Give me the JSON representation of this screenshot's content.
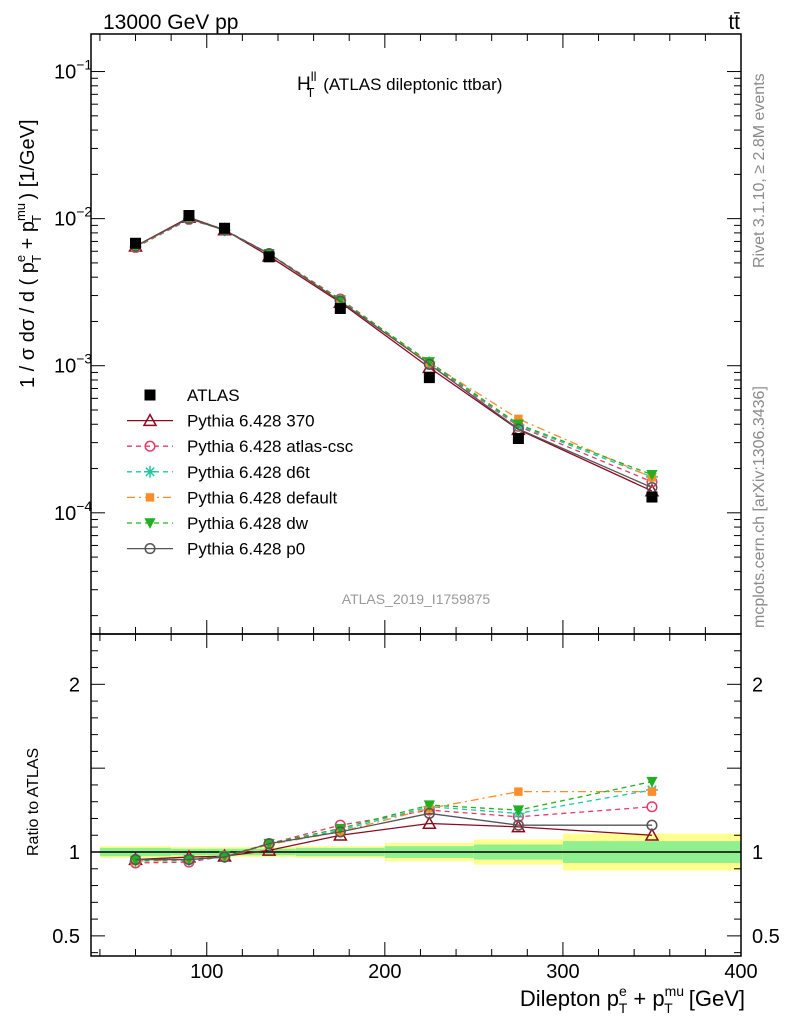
{
  "header": {
    "energy_label": "13000 GeV pp",
    "process_label": "tt̄"
  },
  "side_labels": {
    "rivet": "Rivet 3.1.10, ≥ 2.8M events",
    "mcplots": "mcplots.cern.ch [arXiv:1306.3436]"
  },
  "chart_data": {
    "type": "line",
    "title_main": "H",
    "title_sup": "ll",
    "title_sub": "T",
    "title_rest": " (ATLAS dileptonic ttbar)",
    "analysis_label": "ATLAS_2019_I1759875",
    "xlabel": {
      "main": "Dilepton p",
      "sup1": "e",
      "sub1": "T",
      "plus": " + p",
      "sup2": "mu",
      "sub2": "T",
      "unit": " [GeV]"
    },
    "ylabel": {
      "pre": "1 / σ  dσ / d ( p",
      "sup1": "e",
      "sub1": "T",
      "mid": " + p",
      "sup2": "mu",
      "sub2": "T",
      "post": " ) [1/GeV]"
    },
    "ratio_ylabel": "Ratio to ATLAS",
    "xlim": [
      35,
      400
    ],
    "xscale": "linear",
    "ylim": [
      1.5e-05,
      0.18
    ],
    "yscale": "log",
    "ratio_ylim": [
      0.38,
      2.3
    ],
    "x_ticks": [
      "100",
      "200",
      "300",
      "400"
    ],
    "y_ticks": [
      {
        "base": "10",
        "exp": "−1"
      },
      {
        "base": "10",
        "exp": "−2"
      },
      {
        "base": "10",
        "exp": "−3"
      },
      {
        "base": "10",
        "exp": "−4"
      }
    ],
    "ratio_ticks": [
      "2",
      "1",
      "0.5"
    ],
    "x": [
      60,
      90,
      110,
      135,
      175,
      225,
      275,
      350
    ],
    "bin_edges": [
      40,
      80,
      100,
      120,
      150,
      200,
      250,
      300,
      400
    ],
    "data": {
      "name": "ATLAS",
      "values": [
        0.0068,
        0.0105,
        0.0086,
        0.0055,
        0.00245,
        0.00083,
        0.00032,
        0.000128
      ],
      "band_stat": [
        0.025,
        0.02,
        0.02,
        0.02,
        0.025,
        0.035,
        0.045,
        0.065
      ],
      "band_total": [
        0.035,
        0.03,
        0.03,
        0.03,
        0.035,
        0.055,
        0.075,
        0.11
      ]
    },
    "series": [
      {
        "name": "Pythia 6.428 370",
        "color": "#8b0a1e",
        "marker": "triangle-open",
        "dash": "solid",
        "ratio": [
          0.955,
          0.97,
          0.975,
          1.01,
          1.1,
          1.17,
          1.15,
          1.1
        ]
      },
      {
        "name": "Pythia 6.428 atlas-csc",
        "color": "#e8386a",
        "marker": "circle-open",
        "dash": "dashed",
        "ratio": [
          0.935,
          0.94,
          0.975,
          1.05,
          1.16,
          1.25,
          1.21,
          1.27
        ]
      },
      {
        "name": "Pythia 6.428 d6t",
        "color": "#20c8a0",
        "marker": "star",
        "dash": "dashed",
        "ratio": [
          0.945,
          0.95,
          0.97,
          1.045,
          1.13,
          1.27,
          1.23,
          1.37
        ]
      },
      {
        "name": "Pythia 6.428 default",
        "color": "#ff8c2a",
        "marker": "square-filled",
        "dash": "dashdot",
        "ratio": [
          0.945,
          0.955,
          0.97,
          1.045,
          1.12,
          1.26,
          1.36,
          1.36
        ]
      },
      {
        "name": "Pythia 6.428 dw",
        "color": "#22b022",
        "marker": "triangle-down-filled",
        "dash": "dashed",
        "ratio": [
          0.95,
          0.955,
          0.975,
          1.05,
          1.14,
          1.28,
          1.25,
          1.42
        ]
      },
      {
        "name": "Pythia 6.428 p0",
        "color": "#555555",
        "marker": "circle-open",
        "dash": "solid",
        "ratio": [
          0.955,
          0.955,
          0.97,
          1.05,
          1.12,
          1.23,
          1.16,
          1.16
        ]
      }
    ],
    "legend_position": "middle-left",
    "grid": false
  },
  "colors": {
    "band_stat": "#90f090",
    "band_total": "#ffff90"
  }
}
